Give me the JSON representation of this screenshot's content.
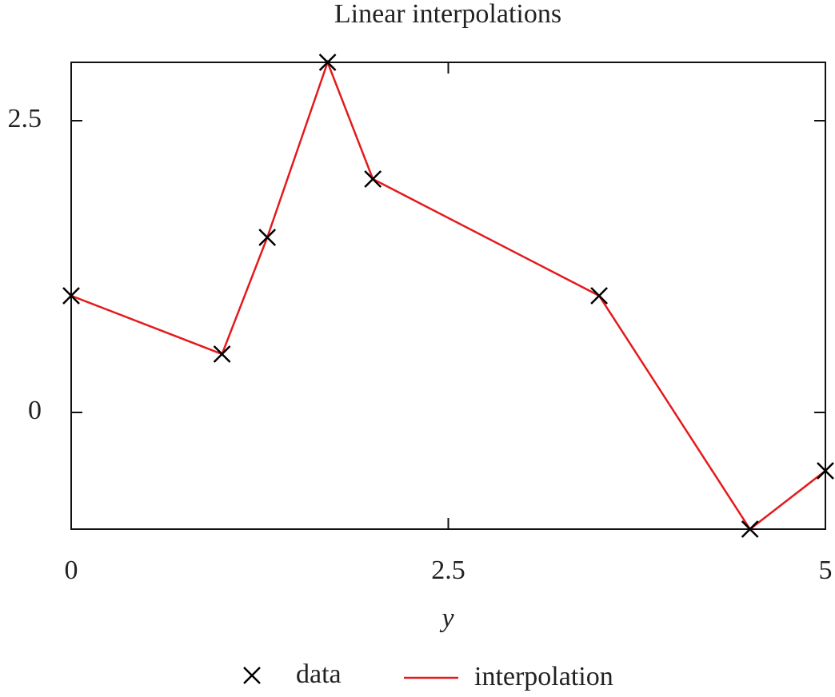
{
  "chart_data": {
    "type": "line",
    "title": "Linear interpolations",
    "x_label": "y",
    "x": [
      0,
      1,
      1.3,
      1.7,
      2,
      3.5,
      4.5,
      5
    ],
    "series": [
      {
        "name": "data",
        "color": "#000000",
        "marker": "x",
        "values": [
          1,
          0.5,
          1.5,
          3,
          2,
          1,
          -1,
          -0.5
        ]
      },
      {
        "name": "interpolation",
        "color": "#e41a1c",
        "values": [
          1,
          0.5,
          1.5,
          3,
          2,
          1,
          -1,
          -0.5
        ]
      }
    ],
    "xlim": [
      0,
      5
    ],
    "xticks": [
      0,
      2.5,
      5
    ],
    "ylim": [
      -1,
      3
    ],
    "yticks": [
      0,
      2.5
    ],
    "legend": "bottom"
  }
}
